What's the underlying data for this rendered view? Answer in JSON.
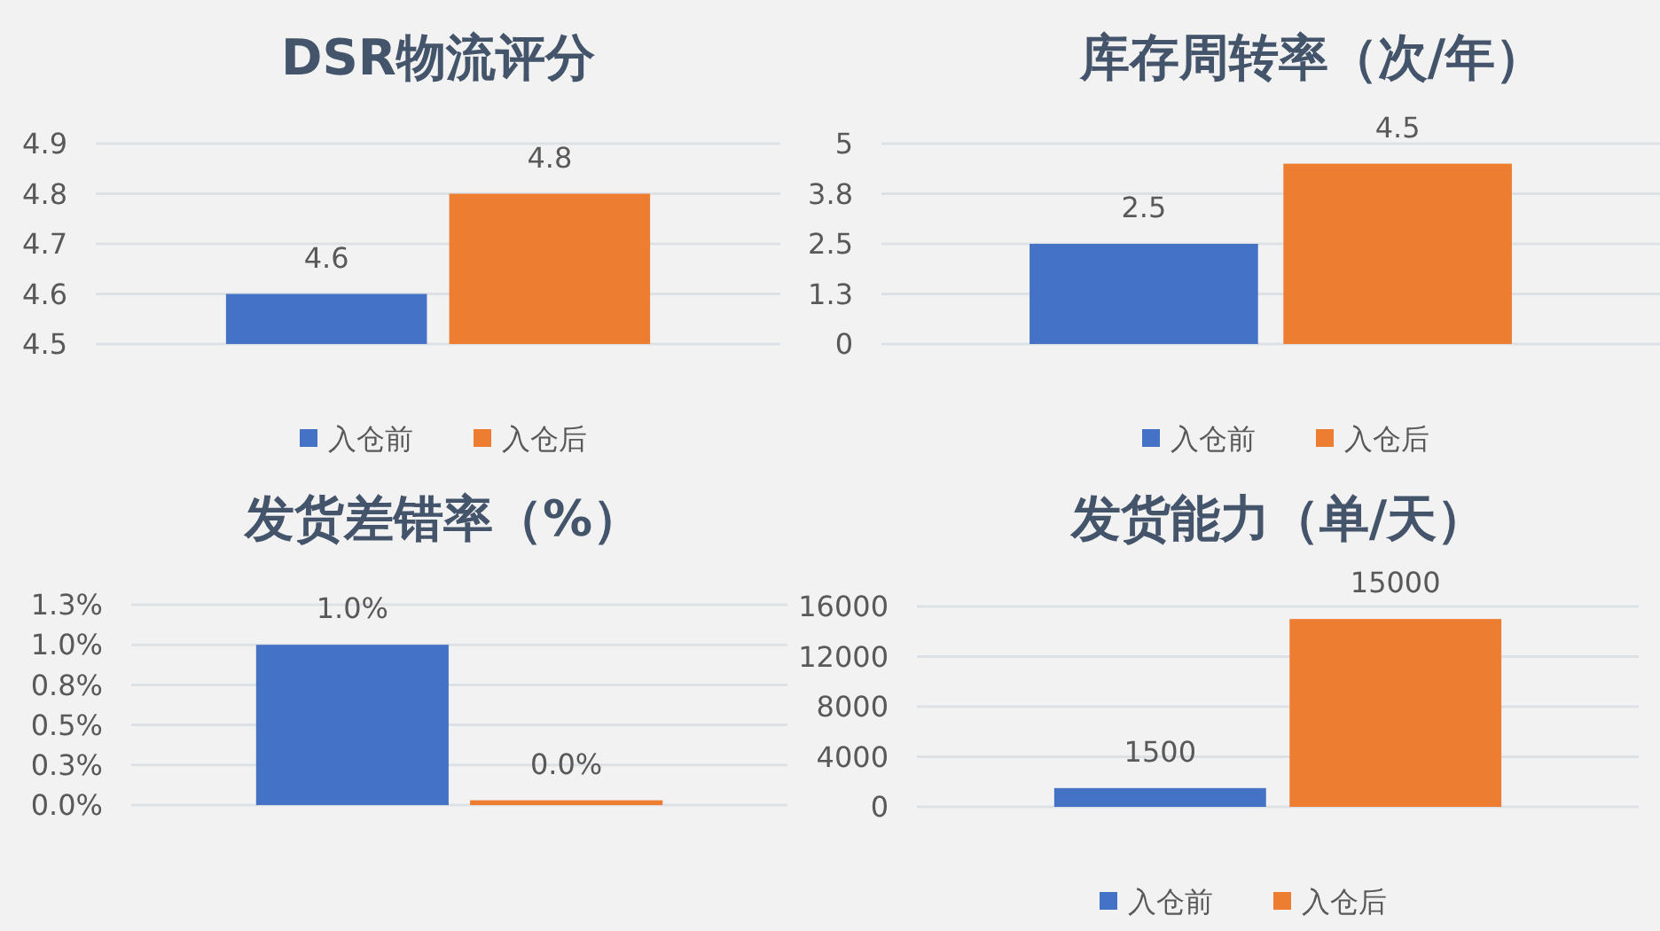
{
  "chart_data": [
    {
      "type": "bar",
      "title": "DSR物流评分",
      "categories": [
        null
      ],
      "series": [
        {
          "name": "入仓前",
          "color": "#4472c4",
          "values": [
            4.6
          ]
        },
        {
          "name": "入仓后",
          "color": "#ed7d31",
          "values": [
            4.8
          ]
        }
      ],
      "ylim": [
        4.5,
        4.9
      ],
      "yticks": [
        4.5,
        4.6,
        4.7,
        4.8,
        4.9
      ],
      "grid": "y",
      "legend": "bottom",
      "data_labels": true
    },
    {
      "type": "bar",
      "title": "库存周转率（次/年）",
      "categories": [
        null
      ],
      "series": [
        {
          "name": "入仓前",
          "color": "#4472c4",
          "values": [
            2.5
          ]
        },
        {
          "name": "入仓后",
          "color": "#ed7d31",
          "values": [
            4.5
          ]
        }
      ],
      "ylim": [
        0,
        5
      ],
      "yticks": [
        0,
        {
          "value": 1.25,
          "label": "1.3"
        },
        2.5,
        {
          "value": 3.75,
          "label": "3.8"
        },
        5
      ],
      "grid": "y",
      "legend": "bottom",
      "data_labels": true
    },
    {
      "type": "bar",
      "title": "发货差错率（%）",
      "categories": [
        null
      ],
      "series": [
        {
          "color": "#4472c4",
          "values": [
            1.0
          ],
          "value_labels": [
            "1.0%"
          ]
        },
        {
          "color": "#ed7d31",
          "values": [
            0.03
          ],
          "value_labels": [
            "0.0%"
          ]
        }
      ],
      "ylim": [
        0,
        1.25
      ],
      "yticks": [
        {
          "value": 0,
          "label": "0.0%"
        },
        {
          "value": 0.25,
          "label": "0.3%"
        },
        {
          "value": 0.5,
          "label": "0.5%"
        },
        {
          "value": 0.75,
          "label": "0.8%"
        },
        {
          "value": 1.0,
          "label": "1.0%"
        },
        {
          "value": 1.25,
          "label": "1.3%"
        }
      ],
      "grid": "y"
    },
    {
      "type": "bar",
      "title": "发货能力（单/天）",
      "categories": [
        null
      ],
      "series": [
        {
          "name": "入仓前",
          "color": "#4472c4",
          "values": [
            1500
          ]
        },
        {
          "name": "入仓后",
          "color": "#ed7d31",
          "values": [
            15000
          ]
        }
      ],
      "ylim": [
        0,
        16000
      ],
      "yticks": [
        0,
        4000,
        8000,
        12000,
        16000
      ],
      "grid": "y",
      "legend": "bottom",
      "data_labels": true
    }
  ]
}
